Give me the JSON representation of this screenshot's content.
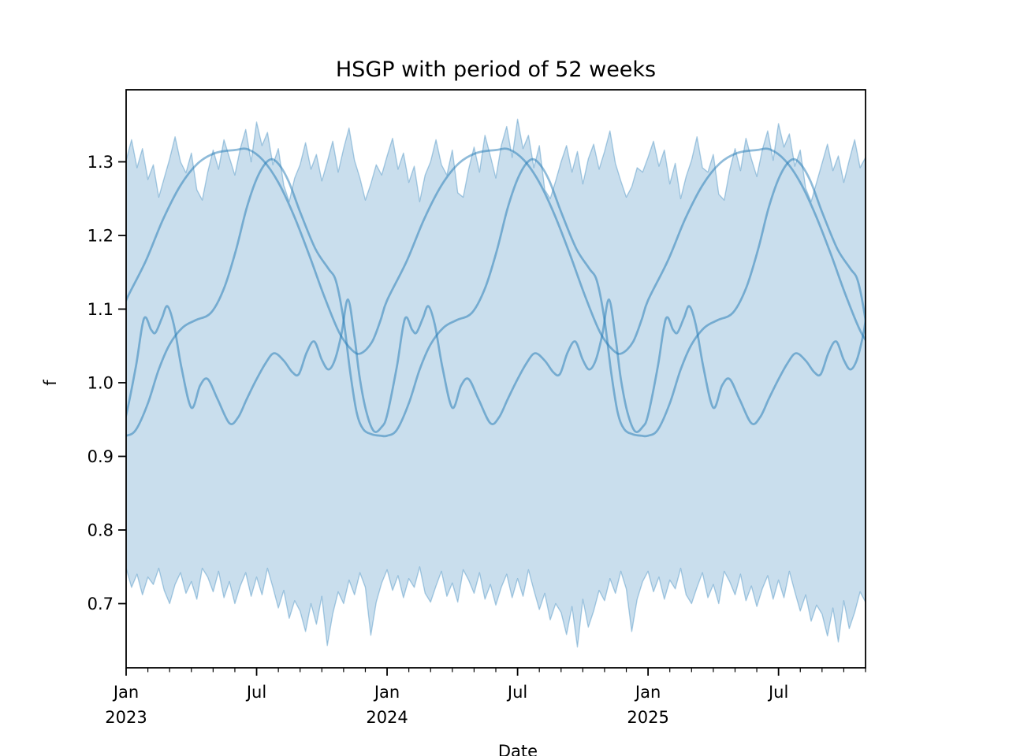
{
  "chart_data": {
    "type": "line",
    "title": "HSGP with period of 52 weeks",
    "xlabel": "Date",
    "ylabel": "f",
    "legend": "none",
    "grid": false,
    "x_axis": {
      "label": "Date",
      "start_month": "2023-01",
      "end_month": "2025-11",
      "major_ticks": [
        {
          "t": 0,
          "month": "Jan",
          "year": "2023"
        },
        {
          "t": 6,
          "month": "Jul",
          "year": ""
        },
        {
          "t": 12,
          "month": "Jan",
          "year": "2024"
        },
        {
          "t": 18,
          "month": "Jul",
          "year": ""
        },
        {
          "t": 24,
          "month": "Jan",
          "year": "2025"
        },
        {
          "t": 30,
          "month": "Jul",
          "year": ""
        }
      ],
      "minor_tick_months": [
        1,
        2,
        3,
        4,
        5,
        7,
        8,
        9,
        10,
        11,
        13,
        14,
        15,
        16,
        17,
        19,
        20,
        21,
        22,
        23,
        25,
        26,
        27,
        28,
        29,
        31,
        32,
        33,
        34
      ]
    },
    "y_axis": {
      "label": "f",
      "ticks": [
        {
          "v": 1.3,
          "label": "1.3"
        },
        {
          "v": 1.2,
          "label": "1.2"
        },
        {
          "v": 1.1,
          "label": "1.1"
        },
        {
          "v": 1.0,
          "label": "1.0"
        },
        {
          "v": 0.9,
          "label": "0.9"
        },
        {
          "v": 0.8,
          "label": "0.8"
        },
        {
          "v": 0.7,
          "label": "0.7"
        }
      ],
      "lim": [
        0.613,
        1.399
      ]
    },
    "period_weeks": 52,
    "colors": {
      "base": "#1f77b4",
      "line_alpha": 0.5,
      "band_fill_alpha": 0.24,
      "band_edge_alpha": 0.35,
      "axis_color": "#000000",
      "background": "#ffffff"
    },
    "hdi_band": {
      "t_step_months": 0.25,
      "t_start": 0,
      "upper": [
        1.302,
        1.33,
        1.292,
        1.318,
        1.276,
        1.296,
        1.252,
        1.278,
        1.304,
        1.334,
        1.3,
        1.285,
        1.312,
        1.262,
        1.248,
        1.286,
        1.316,
        1.29,
        1.33,
        1.306,
        1.282,
        1.318,
        1.344,
        1.3,
        1.354,
        1.322,
        1.34,
        1.296,
        1.318,
        1.268,
        1.246,
        1.278,
        1.296,
        1.326,
        1.29,
        1.31,
        1.274,
        1.3,
        1.328,
        1.286,
        1.318,
        1.346,
        1.302,
        1.278,
        1.248,
        1.27,
        1.296,
        1.282,
        1.308,
        1.332,
        1.29,
        1.312,
        1.272,
        1.294,
        1.246,
        1.282,
        1.3,
        1.33,
        1.296,
        1.282,
        1.316,
        1.258,
        1.252,
        1.29,
        1.32,
        1.286,
        1.336,
        1.308,
        1.278,
        1.322,
        1.348,
        1.306,
        1.358,
        1.318,
        1.336,
        1.292,
        1.322,
        1.262,
        1.25,
        1.274,
        1.3,
        1.322,
        1.286,
        1.314,
        1.27,
        1.304,
        1.324,
        1.29,
        1.314,
        1.342,
        1.298,
        1.274,
        1.252,
        1.266,
        1.292,
        1.286,
        1.306,
        1.328,
        1.294,
        1.316,
        1.27,
        1.298,
        1.25,
        1.28,
        1.302,
        1.334,
        1.292,
        1.286,
        1.31,
        1.256,
        1.248,
        1.288,
        1.318,
        1.288,
        1.332,
        1.304,
        1.28,
        1.316,
        1.342,
        1.302,
        1.352,
        1.32,
        1.338,
        1.294,
        1.316,
        1.264,
        1.246,
        1.272,
        1.298,
        1.324,
        1.288,
        1.308,
        1.272,
        1.302,
        1.33,
        1.292,
        1.306
      ],
      "lower": [
        0.748,
        0.722,
        0.74,
        0.712,
        0.736,
        0.726,
        0.748,
        0.718,
        0.7,
        0.726,
        0.742,
        0.714,
        0.73,
        0.706,
        0.748,
        0.736,
        0.716,
        0.744,
        0.708,
        0.73,
        0.7,
        0.724,
        0.742,
        0.71,
        0.736,
        0.712,
        0.748,
        0.722,
        0.694,
        0.718,
        0.68,
        0.704,
        0.69,
        0.662,
        0.7,
        0.672,
        0.71,
        0.643,
        0.686,
        0.716,
        0.7,
        0.732,
        0.712,
        0.742,
        0.722,
        0.657,
        0.702,
        0.728,
        0.746,
        0.718,
        0.738,
        0.708,
        0.734,
        0.722,
        0.75,
        0.714,
        0.702,
        0.724,
        0.744,
        0.71,
        0.728,
        0.702,
        0.746,
        0.732,
        0.714,
        0.742,
        0.706,
        0.726,
        0.698,
        0.722,
        0.74,
        0.708,
        0.734,
        0.71,
        0.746,
        0.718,
        0.692,
        0.714,
        0.678,
        0.7,
        0.688,
        0.658,
        0.696,
        0.641,
        0.706,
        0.668,
        0.69,
        0.718,
        0.704,
        0.734,
        0.714,
        0.744,
        0.72,
        0.662,
        0.706,
        0.73,
        0.744,
        0.716,
        0.736,
        0.706,
        0.732,
        0.72,
        0.748,
        0.712,
        0.7,
        0.722,
        0.742,
        0.708,
        0.726,
        0.7,
        0.744,
        0.73,
        0.712,
        0.74,
        0.704,
        0.724,
        0.696,
        0.72,
        0.738,
        0.706,
        0.732,
        0.708,
        0.744,
        0.716,
        0.69,
        0.712,
        0.676,
        0.698,
        0.686,
        0.656,
        0.694,
        0.648,
        0.704,
        0.666,
        0.688,
        0.716,
        0.702
      ]
    },
    "posterior_samples": [
      {
        "name": "sample-1",
        "period_months": 12,
        "points": [
          [
            0,
            1.112
          ],
          [
            0.9,
            1.165
          ],
          [
            1.7,
            1.222
          ],
          [
            2.5,
            1.268
          ],
          [
            3.3,
            1.298
          ],
          [
            4.1,
            1.312
          ],
          [
            5.0,
            1.316
          ],
          [
            5.6,
            1.317
          ],
          [
            6.3,
            1.302
          ],
          [
            7.0,
            1.272
          ],
          [
            7.7,
            1.228
          ],
          [
            8.4,
            1.175
          ],
          [
            9.1,
            1.118
          ],
          [
            9.8,
            1.068
          ],
          [
            10.4,
            1.044
          ],
          [
            10.8,
            1.04
          ],
          [
            11.3,
            1.055
          ],
          [
            11.7,
            1.085
          ]
        ]
      },
      {
        "name": "sample-2",
        "period_months": 12,
        "points": [
          [
            0,
            0.928
          ],
          [
            0.45,
            0.936
          ],
          [
            1.0,
            0.972
          ],
          [
            1.5,
            1.018
          ],
          [
            2.0,
            1.052
          ],
          [
            2.6,
            1.075
          ],
          [
            3.2,
            1.085
          ],
          [
            3.9,
            1.095
          ],
          [
            4.5,
            1.128
          ],
          [
            5.05,
            1.18
          ],
          [
            5.55,
            1.238
          ],
          [
            6.05,
            1.28
          ],
          [
            6.55,
            1.302
          ],
          [
            6.95,
            1.299
          ],
          [
            7.45,
            1.275
          ],
          [
            8.0,
            1.232
          ],
          [
            8.7,
            1.182
          ],
          [
            9.3,
            1.155
          ],
          [
            9.65,
            1.138
          ],
          [
            10.0,
            1.085
          ],
          [
            10.3,
            1.015
          ],
          [
            10.6,
            0.96
          ],
          [
            10.9,
            0.937
          ],
          [
            11.3,
            0.93
          ],
          [
            11.7,
            0.928
          ]
        ]
      },
      {
        "name": "sample-3",
        "period_months": 12,
        "points": [
          [
            0,
            0.956
          ],
          [
            0.45,
            1.022
          ],
          [
            0.82,
            1.087
          ],
          [
            1.15,
            1.072
          ],
          [
            1.35,
            1.068
          ],
          [
            1.65,
            1.088
          ],
          [
            1.9,
            1.104
          ],
          [
            2.2,
            1.078
          ],
          [
            2.55,
            1.02
          ],
          [
            3.0,
            0.966
          ],
          [
            3.4,
            0.996
          ],
          [
            3.75,
            1.005
          ],
          [
            4.2,
            0.978
          ],
          [
            4.75,
            0.945
          ],
          [
            5.15,
            0.953
          ],
          [
            5.55,
            0.978
          ],
          [
            5.95,
            1.002
          ],
          [
            6.4,
            1.026
          ],
          [
            6.8,
            1.04
          ],
          [
            7.25,
            1.03
          ],
          [
            7.65,
            1.014
          ],
          [
            7.95,
            1.012
          ],
          [
            8.3,
            1.041
          ],
          [
            8.65,
            1.056
          ],
          [
            9.0,
            1.031
          ],
          [
            9.3,
            1.018
          ],
          [
            9.6,
            1.031
          ],
          [
            9.9,
            1.066
          ],
          [
            10.2,
            1.113
          ],
          [
            10.5,
            1.062
          ],
          [
            10.75,
            1.005
          ],
          [
            11.05,
            0.96
          ],
          [
            11.4,
            0.934
          ],
          [
            11.75,
            0.94
          ]
        ]
      }
    ]
  }
}
